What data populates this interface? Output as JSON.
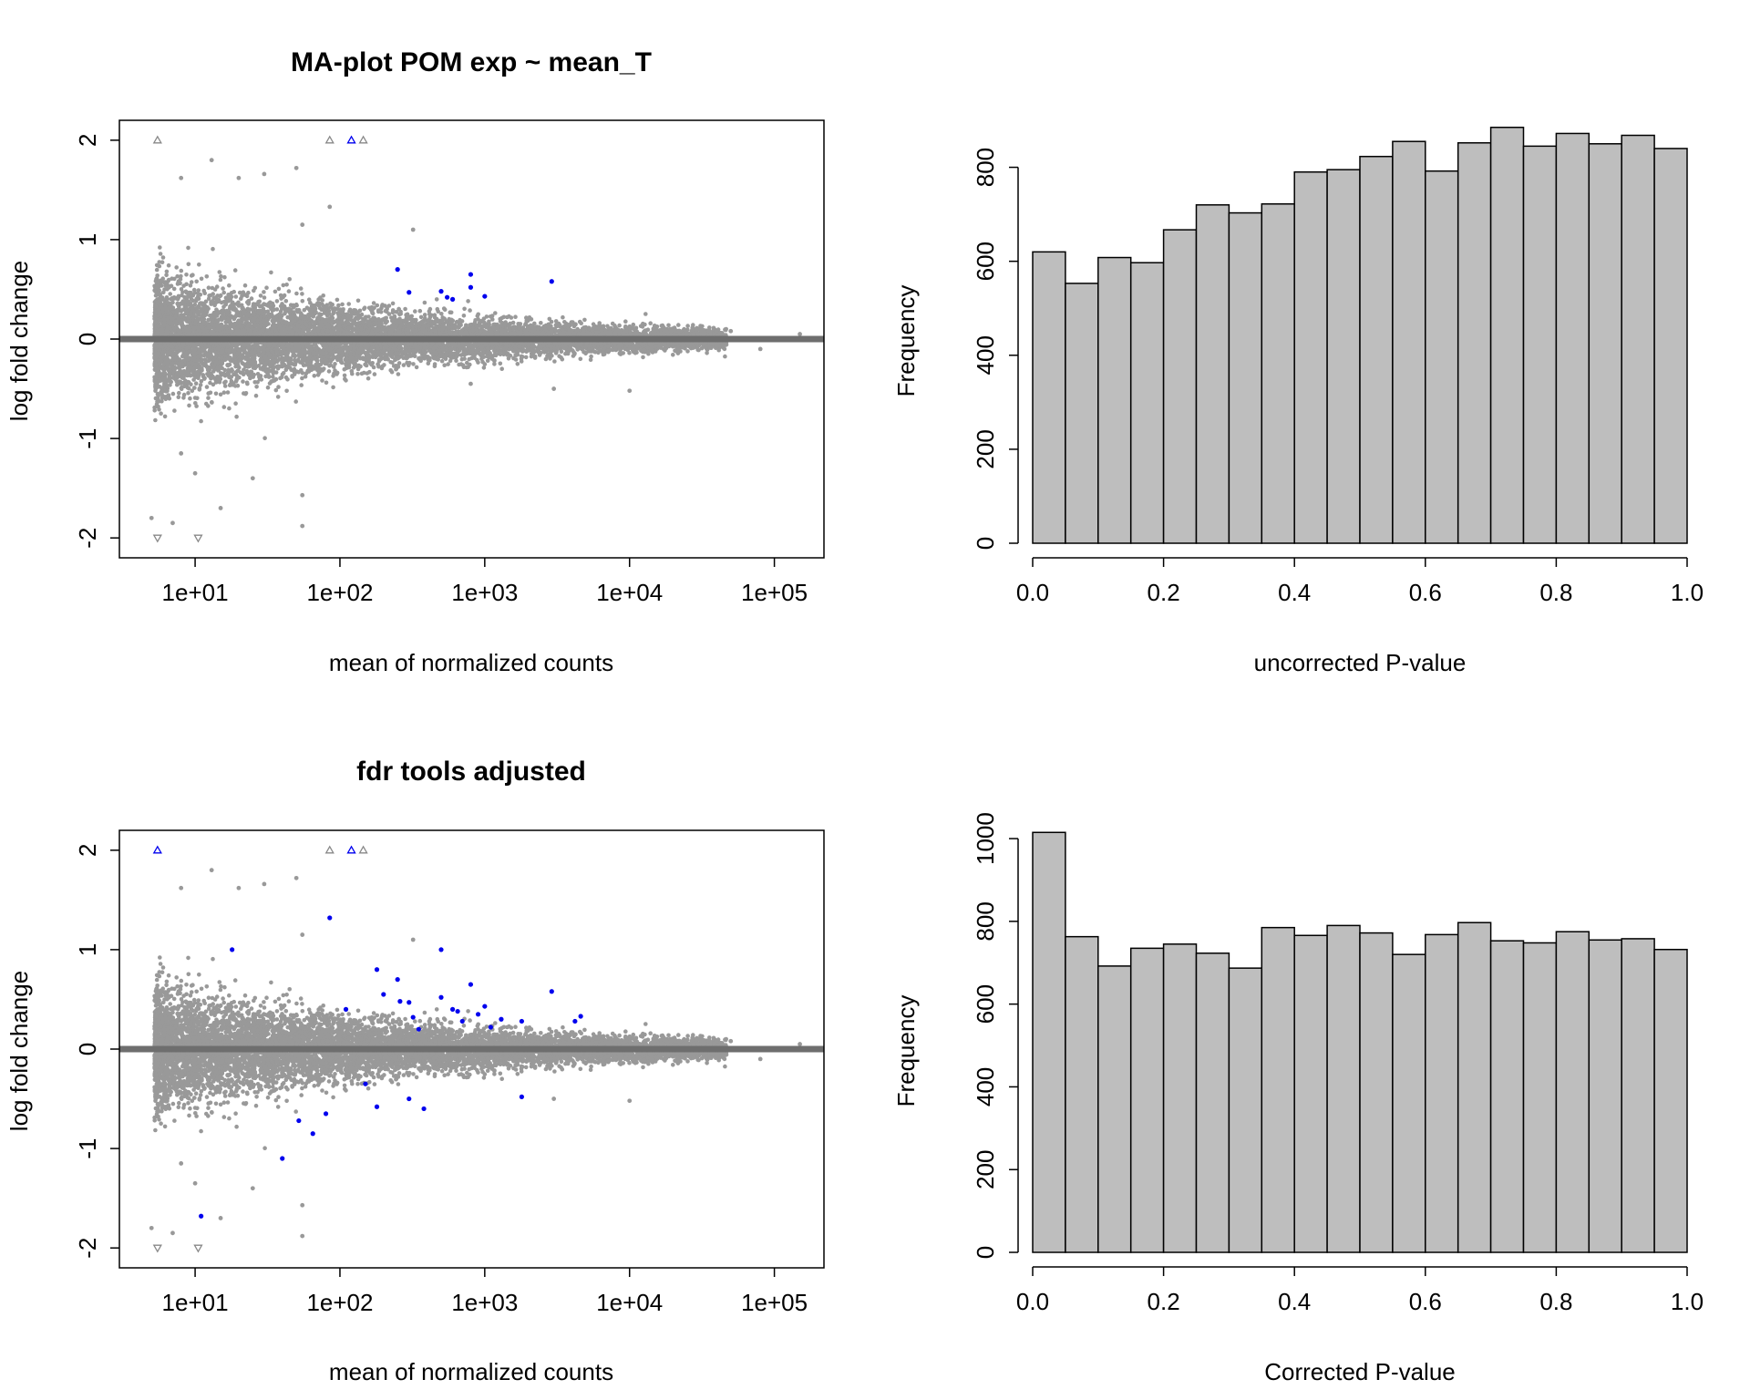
{
  "colors": {
    "background": "#ffffff",
    "point_gray": "#999999",
    "point_sig": "#0000ee",
    "zero_line": "#6e6e6e",
    "bar_fill": "#bebebe",
    "axis": "#000000"
  },
  "chart_data": [
    {
      "type": "scatter",
      "title": "MA-plot POM exp ~ mean_T",
      "xlabel": "mean of normalized counts",
      "ylabel": "log fold change",
      "xscale": "log",
      "xlim": [
        3,
        220000
      ],
      "ylim": [
        -2.2,
        2.2
      ],
      "x_tick_values": [
        10,
        100,
        1000,
        10000,
        100000
      ],
      "x_tick_labels": [
        "1e+01",
        "1e+02",
        "1e+03",
        "1e+04",
        "1e+05"
      ],
      "y_tick_values": [
        -2,
        -1,
        0,
        1,
        2
      ],
      "y_tick_labels": [
        "-2",
        "-1",
        "0",
        "1",
        "2"
      ],
      "reference_line": 0,
      "cloud_summary": "approximately 15000 gray genes; spread shrinks as mean count increases",
      "outliers_gray": [
        [
          8,
          1.62
        ],
        [
          13,
          1.8
        ],
        [
          20,
          1.62
        ],
        [
          30,
          1.66
        ],
        [
          50,
          1.72
        ],
        [
          85,
          1.33
        ],
        [
          55,
          1.15
        ],
        [
          320,
          1.1
        ],
        [
          5,
          -1.8
        ],
        [
          7,
          -1.85
        ],
        [
          8,
          -1.15
        ],
        [
          10,
          -1.35
        ],
        [
          15,
          -1.7
        ],
        [
          25,
          -1.4
        ],
        [
          55,
          -1.57
        ],
        [
          55,
          -1.88
        ],
        [
          800,
          -0.45
        ],
        [
          3000,
          -0.5
        ],
        [
          10000,
          -0.52
        ],
        [
          80000,
          -0.1
        ],
        [
          150000,
          0.05
        ],
        [
          50000,
          0.08
        ]
      ],
      "significant_points": [
        [
          250,
          0.7
        ],
        [
          300,
          0.47
        ],
        [
          800,
          0.65
        ],
        [
          550,
          0.42
        ],
        [
          1000,
          0.43
        ],
        [
          2900,
          0.58
        ],
        [
          500,
          0.48
        ],
        [
          600,
          0.4
        ],
        [
          800,
          0.52
        ]
      ],
      "clipped_up_gray": [
        5.5,
        85,
        145
      ],
      "clipped_up_sig": [
        120
      ],
      "clipped_down_gray": [
        5.5,
        10.5
      ]
    },
    {
      "type": "bar",
      "title": "",
      "xlabel": "uncorrected P-value",
      "ylabel": "Frequency",
      "bin_edges": [
        0.0,
        0.05,
        0.1,
        0.15,
        0.2,
        0.25,
        0.3,
        0.35,
        0.4,
        0.45,
        0.5,
        0.55,
        0.6,
        0.65,
        0.7,
        0.75,
        0.8,
        0.85,
        0.9,
        0.95,
        1.0
      ],
      "values": [
        620,
        553,
        608,
        597,
        667,
        720,
        703,
        722,
        790,
        795,
        823,
        855,
        792,
        852,
        885,
        845,
        872,
        850,
        868,
        840
      ],
      "xlim": [
        0,
        1
      ],
      "ylim": [
        0,
        900
      ],
      "x_tick_labels": [
        "0.0",
        "0.2",
        "0.4",
        "0.6",
        "0.8",
        "1.0"
      ],
      "y_tick_values": [
        0,
        200,
        400,
        600,
        800
      ],
      "y_tick_labels": [
        "0",
        "200",
        "400",
        "600",
        "800"
      ]
    },
    {
      "type": "scatter",
      "title": "fdr tools adjusted",
      "xlabel": "mean of normalized counts",
      "ylabel": "log fold change",
      "xscale": "log",
      "xlim": [
        3,
        220000
      ],
      "ylim": [
        -2.2,
        2.2
      ],
      "x_tick_values": [
        10,
        100,
        1000,
        10000,
        100000
      ],
      "x_tick_labels": [
        "1e+01",
        "1e+02",
        "1e+03",
        "1e+04",
        "1e+05"
      ],
      "y_tick_values": [
        -2,
        -1,
        0,
        1,
        2
      ],
      "y_tick_labels": [
        "-2",
        "-1",
        "0",
        "1",
        "2"
      ],
      "reference_line": 0,
      "cloud_summary": "approximately 15000 gray genes; spread shrinks as mean count increases",
      "outliers_gray": [
        [
          8,
          1.62
        ],
        [
          13,
          1.8
        ],
        [
          20,
          1.62
        ],
        [
          30,
          1.66
        ],
        [
          50,
          1.72
        ],
        [
          55,
          1.15
        ],
        [
          320,
          1.1
        ],
        [
          5,
          -1.8
        ],
        [
          7,
          -1.85
        ],
        [
          8,
          -1.15
        ],
        [
          10,
          -1.35
        ],
        [
          15,
          -1.7
        ],
        [
          25,
          -1.4
        ],
        [
          55,
          -1.57
        ],
        [
          55,
          -1.88
        ],
        [
          3000,
          -0.5
        ],
        [
          10000,
          -0.52
        ],
        [
          80000,
          -0.1
        ],
        [
          150000,
          0.05
        ],
        [
          50000,
          0.08
        ]
      ],
      "significant_points": [
        [
          85,
          1.32
        ],
        [
          18,
          1.0
        ],
        [
          40,
          -1.1
        ],
        [
          11,
          -1.68
        ],
        [
          52,
          -0.72
        ],
        [
          65,
          -0.85
        ],
        [
          80,
          -0.65
        ],
        [
          110,
          0.4
        ],
        [
          180,
          0.8
        ],
        [
          200,
          0.55
        ],
        [
          250,
          0.7
        ],
        [
          260,
          0.48
        ],
        [
          300,
          0.47
        ],
        [
          320,
          0.32
        ],
        [
          350,
          0.2
        ],
        [
          500,
          1.0
        ],
        [
          500,
          0.52
        ],
        [
          600,
          0.4
        ],
        [
          650,
          0.38
        ],
        [
          700,
          0.28
        ],
        [
          800,
          0.65
        ],
        [
          900,
          0.35
        ],
        [
          1000,
          0.43
        ],
        [
          1100,
          0.22
        ],
        [
          1300,
          0.3
        ],
        [
          1800,
          0.28
        ],
        [
          1800,
          -0.48
        ],
        [
          2900,
          0.58
        ],
        [
          4200,
          0.28
        ],
        [
          4600,
          0.33
        ],
        [
          180,
          -0.58
        ],
        [
          300,
          -0.5
        ],
        [
          380,
          -0.6
        ],
        [
          150,
          -0.35
        ]
      ],
      "clipped_up_gray": [
        85,
        145
      ],
      "clipped_up_sig": [
        5.5,
        120
      ],
      "clipped_down_gray": [
        5.5,
        10.5
      ]
    },
    {
      "type": "bar",
      "title": "",
      "xlabel": "Corrected P-value",
      "ylabel": "Frequency",
      "bin_edges": [
        0.0,
        0.05,
        0.1,
        0.15,
        0.2,
        0.25,
        0.3,
        0.35,
        0.4,
        0.45,
        0.5,
        0.55,
        0.6,
        0.65,
        0.7,
        0.75,
        0.8,
        0.85,
        0.9,
        0.95,
        1.0
      ],
      "values": [
        1015,
        763,
        692,
        735,
        745,
        723,
        687,
        785,
        766,
        790,
        772,
        720,
        768,
        797,
        753,
        748,
        775,
        755,
        758,
        732
      ],
      "xlim": [
        0,
        1
      ],
      "ylim": [
        0,
        1020
      ],
      "x_tick_labels": [
        "0.0",
        "0.2",
        "0.4",
        "0.6",
        "0.8",
        "1.0"
      ],
      "y_tick_values": [
        0,
        200,
        400,
        600,
        800,
        1000
      ],
      "y_tick_labels": [
        "0",
        "200",
        "400",
        "600",
        "800",
        "1000"
      ]
    }
  ]
}
